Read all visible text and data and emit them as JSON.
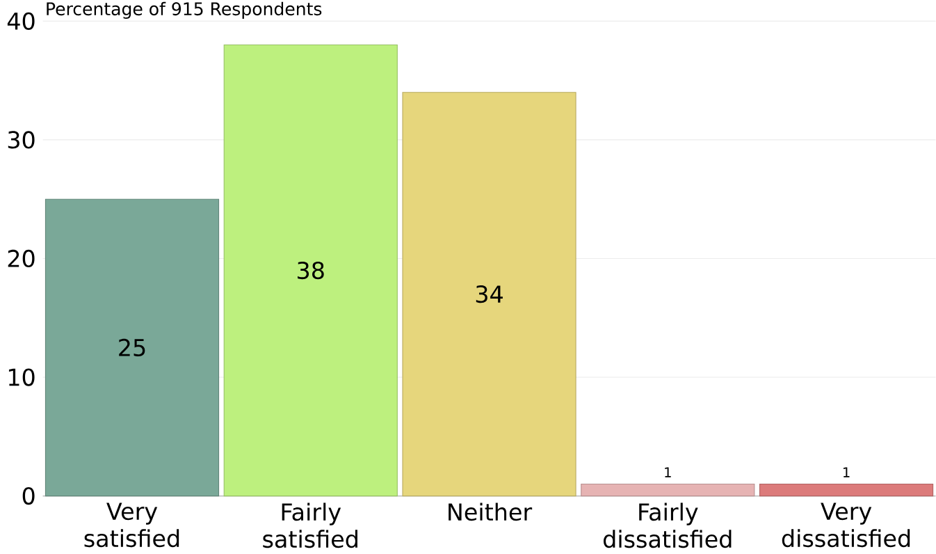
{
  "chart_data": {
    "type": "bar",
    "ylabel": "Percentage of 915 Respondents",
    "categories": [
      "Very satisfied",
      "Fairly satisfied",
      "Neither",
      "Fairly dissatisfied",
      "Very dissatisfied"
    ],
    "values": [
      25,
      38,
      34,
      1,
      1
    ],
    "colors": [
      "#7aa898",
      "#bdf07e",
      "#e6d67c",
      "#e6b3b3",
      "#dc7b7b"
    ],
    "ylim": [
      0,
      40
    ],
    "yticks": [
      0,
      10,
      20,
      30,
      40
    ],
    "grid": "y",
    "data_labels": true
  }
}
